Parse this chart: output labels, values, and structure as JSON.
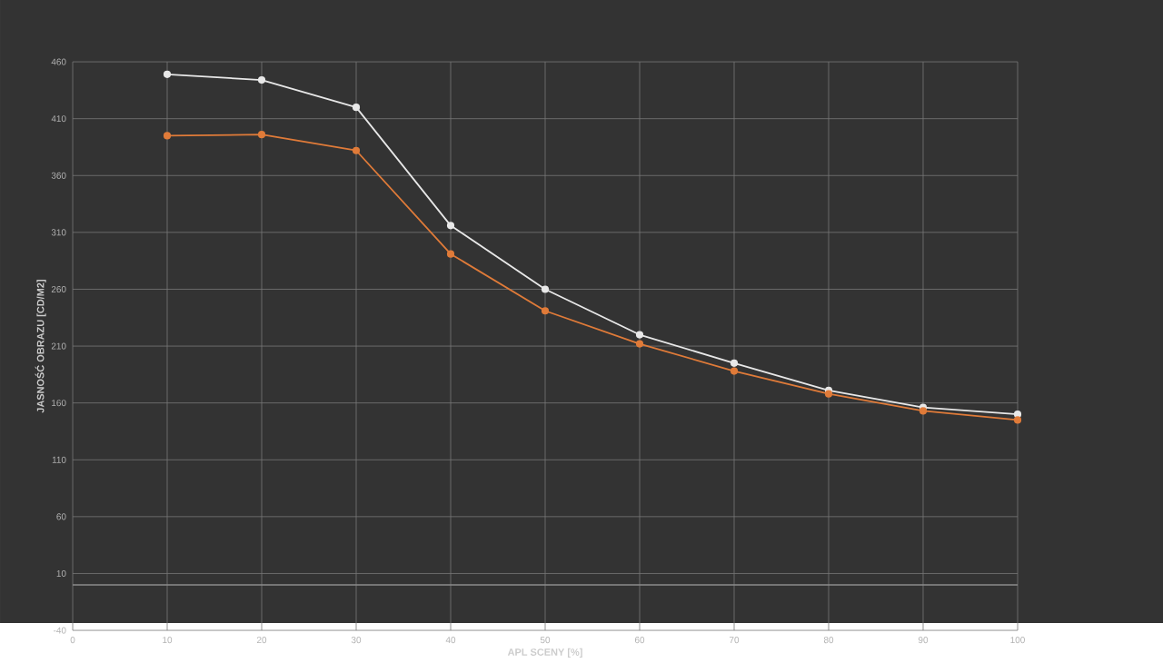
{
  "chart_data": {
    "type": "line",
    "xlabel": "APL SCENY [%]",
    "ylabel": "JASNOŚĆ OBRAZU [CD/M2]",
    "x": [
      10,
      20,
      30,
      40,
      50,
      60,
      70,
      80,
      90,
      100
    ],
    "series": [
      {
        "color": "#e8e8e8",
        "values": [
          449,
          444,
          420,
          316,
          260,
          220,
          195,
          171,
          156,
          150
        ]
      },
      {
        "color": "#e07b39",
        "values": [
          395,
          396,
          382,
          291,
          241,
          212,
          188,
          168,
          153,
          145
        ]
      }
    ],
    "xlim": [
      0,
      100
    ],
    "xticks": [
      0,
      10,
      20,
      30,
      40,
      50,
      60,
      70,
      80,
      90,
      100
    ],
    "ylim": [
      -40,
      460
    ],
    "yticks": [
      -40,
      10,
      60,
      110,
      160,
      210,
      260,
      310,
      360,
      410,
      460
    ],
    "grid": true,
    "marker": "circle",
    "line_style": "solid"
  }
}
